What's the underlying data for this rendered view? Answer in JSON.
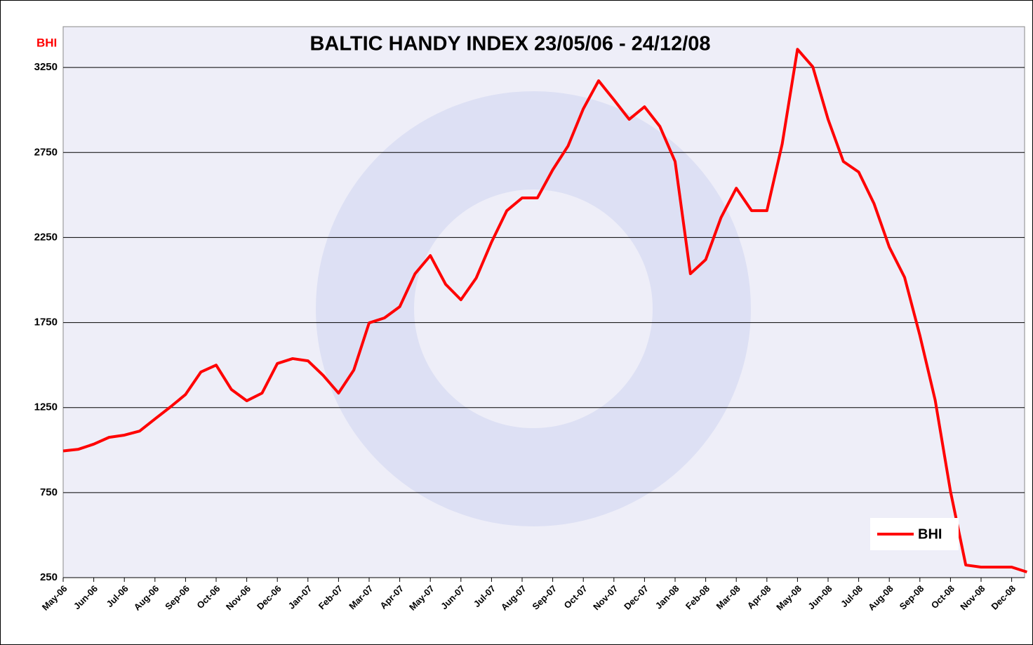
{
  "chart_data": {
    "type": "line",
    "title": "BALTIC HANDY INDEX 23/05/06 - 24/12/08",
    "y_label": "BHI",
    "categories": [
      "May-06",
      null,
      "Jun-06",
      null,
      "Jul-06",
      null,
      "Aug-06",
      null,
      "Sep-06",
      null,
      "Oct-06",
      null,
      "Nov-06",
      null,
      "Dec-06",
      null,
      "Jan-07",
      null,
      "Feb-07",
      null,
      "Mar-07",
      null,
      "Apr-07",
      null,
      "May-07",
      null,
      "Jun-07",
      null,
      "Jul-07",
      null,
      "Aug-07",
      null,
      "Sep-07",
      null,
      "Oct-07",
      null,
      "Nov-07",
      null,
      "Dec-07",
      null,
      "Jan-08",
      null,
      "Feb-08",
      null,
      "Mar-08",
      null,
      "Apr-08",
      null,
      "May-08",
      null,
      "Jun-08",
      null,
      "Jul-08",
      null,
      "Aug-08",
      null,
      "Sep-08",
      null,
      "Oct-08",
      null,
      "Nov-08",
      null,
      "Dec-08",
      null
    ],
    "series": [
      {
        "name": "BHI",
        "color": "#ff0000",
        "values": [
          995,
          1005,
          1035,
          1075,
          1088,
          1112,
          1183,
          1253,
          1327,
          1459,
          1500,
          1356,
          1290,
          1335,
          1509,
          1538,
          1525,
          1439,
          1335,
          1471,
          1748,
          1777,
          1843,
          2037,
          2144,
          1975,
          1884,
          2012,
          2223,
          2408,
          2483,
          2483,
          2648,
          2788,
          3007,
          3172,
          3060,
          2945,
          3019,
          2904,
          2697,
          2037,
          2120,
          2367,
          2540,
          2408,
          2408,
          2800,
          3357,
          3254,
          2945,
          2697,
          2635,
          2450,
          2194,
          2016,
          1674,
          1294,
          758,
          324,
          312,
          312,
          312,
          283
        ]
      }
    ],
    "ylim": [
      250,
      3490
    ],
    "yticks": [
      250,
      750,
      1250,
      1750,
      2250,
      2750,
      3250
    ],
    "grid": true,
    "legend": "lower right"
  }
}
